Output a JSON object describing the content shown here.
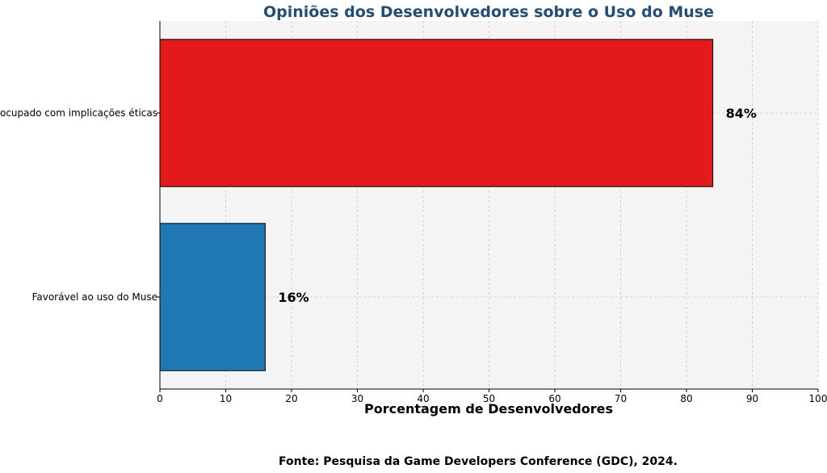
{
  "chart_data": {
    "type": "bar",
    "orientation": "horizontal",
    "title": "Opiniões dos Desenvolvedores sobre o Uso do Muse",
    "xlabel": "Porcentagem de Desenvolvedores",
    "ylabel": "",
    "xlim": [
      0,
      100
    ],
    "xticks": [
      0,
      10,
      20,
      30,
      40,
      50,
      60,
      70,
      80,
      90,
      100
    ],
    "grid": true,
    "categories": [
      "Favorável ao uso do Muse",
      "Preocupado com implicações éticas"
    ],
    "values": [
      16,
      84
    ],
    "data_labels": [
      "16%",
      "84%"
    ],
    "colors": [
      "#1f77b4",
      "#e31a1c"
    ]
  },
  "source": "Fonte: Pesquisa da Game Developers Conference (GDC), 2024."
}
